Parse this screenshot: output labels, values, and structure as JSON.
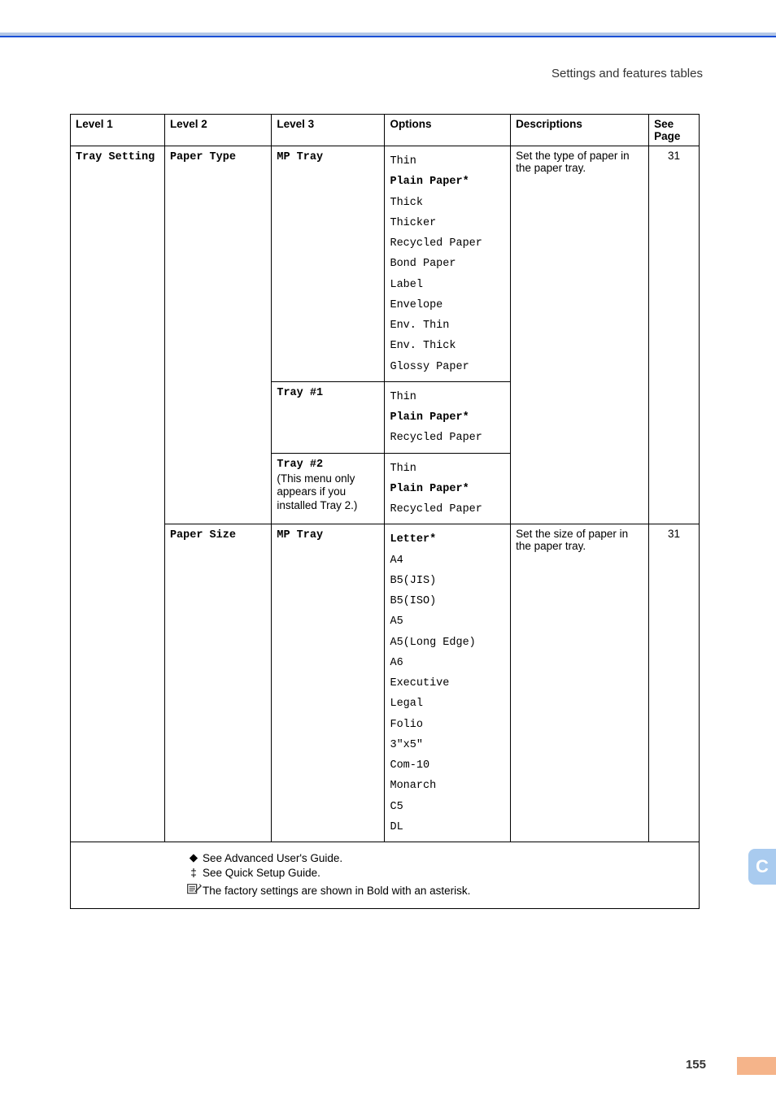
{
  "header": {
    "section_title": "Settings and features tables"
  },
  "table": {
    "columns": [
      "Level 1",
      "Level 2",
      "Level 3",
      "Options",
      "Descriptions",
      "See Page"
    ],
    "sections": [
      {
        "level1": "Tray Setting",
        "level2_groups": [
          {
            "level2": "Paper Type",
            "level2_bold": true,
            "description": "Set the type of paper in the paper tray.",
            "page": "31",
            "level3_groups": [
              {
                "level3": "MP Tray",
                "level3_bold": true,
                "options": [
                  {
                    "text": "Thin",
                    "bold": false
                  },
                  {
                    "text": "Plain Paper*",
                    "bold": true
                  },
                  {
                    "text": "Thick",
                    "bold": false
                  },
                  {
                    "text": "Thicker",
                    "bold": false
                  },
                  {
                    "text": "Recycled Paper",
                    "bold": false
                  },
                  {
                    "text": "Bond Paper",
                    "bold": false
                  },
                  {
                    "text": "Label",
                    "bold": false
                  },
                  {
                    "text": "Envelope",
                    "bold": false
                  },
                  {
                    "text": "Env. Thin",
                    "bold": false
                  },
                  {
                    "text": "Env. Thick",
                    "bold": false
                  },
                  {
                    "text": "Glossy Paper",
                    "bold": false
                  }
                ]
              },
              {
                "level3": "Tray #1",
                "level3_bold": true,
                "options": [
                  {
                    "text": "Thin",
                    "bold": false
                  },
                  {
                    "text": "Plain Paper*",
                    "bold": true
                  },
                  {
                    "text": "Recycled Paper",
                    "bold": false
                  }
                ]
              },
              {
                "level3": "Tray #2",
                "level3_bold": true,
                "note": "(This menu only appears if you installed Tray 2.)",
                "options": [
                  {
                    "text": "Thin",
                    "bold": false
                  },
                  {
                    "text": "Plain Paper*",
                    "bold": true
                  },
                  {
                    "text": "Recycled Paper",
                    "bold": false
                  }
                ]
              }
            ]
          },
          {
            "level2": "Paper Size",
            "level2_bold": true,
            "description": "Set the size of paper in the paper tray.",
            "page": "31",
            "level3_groups": [
              {
                "level3": "MP Tray",
                "level3_bold": true,
                "options": [
                  {
                    "text": "Letter*",
                    "bold": true
                  },
                  {
                    "text": "A4",
                    "bold": false
                  },
                  {
                    "text": "B5(JIS)",
                    "bold": false
                  },
                  {
                    "text": "B5(ISO)",
                    "bold": false
                  },
                  {
                    "text": "A5",
                    "bold": false
                  },
                  {
                    "text": "A5(Long Edge)",
                    "bold": false
                  },
                  {
                    "text": "A6",
                    "bold": false
                  },
                  {
                    "text": "Executive",
                    "bold": false
                  },
                  {
                    "text": "Legal",
                    "bold": false
                  },
                  {
                    "text": "Folio",
                    "bold": false
                  },
                  {
                    "text": "3\"x5\"",
                    "bold": false
                  },
                  {
                    "text": "Com-10",
                    "bold": false
                  },
                  {
                    "text": "Monarch",
                    "bold": false
                  },
                  {
                    "text": "C5",
                    "bold": false
                  },
                  {
                    "text": "DL",
                    "bold": false
                  }
                ]
              }
            ]
          }
        ]
      }
    ],
    "footer": {
      "diamond": "See Advanced User's Guide.",
      "ddagger": "See Quick Setup Guide.",
      "note": "The factory settings are shown in Bold with an asterisk."
    }
  },
  "page": {
    "number": "155",
    "tab_label": "C"
  },
  "colors": {
    "topbar": "#b3c7e6",
    "topbar_line": "#1a4fd6",
    "tab_bg": "#a9cbef",
    "accent_bar": "#f5b48a"
  }
}
